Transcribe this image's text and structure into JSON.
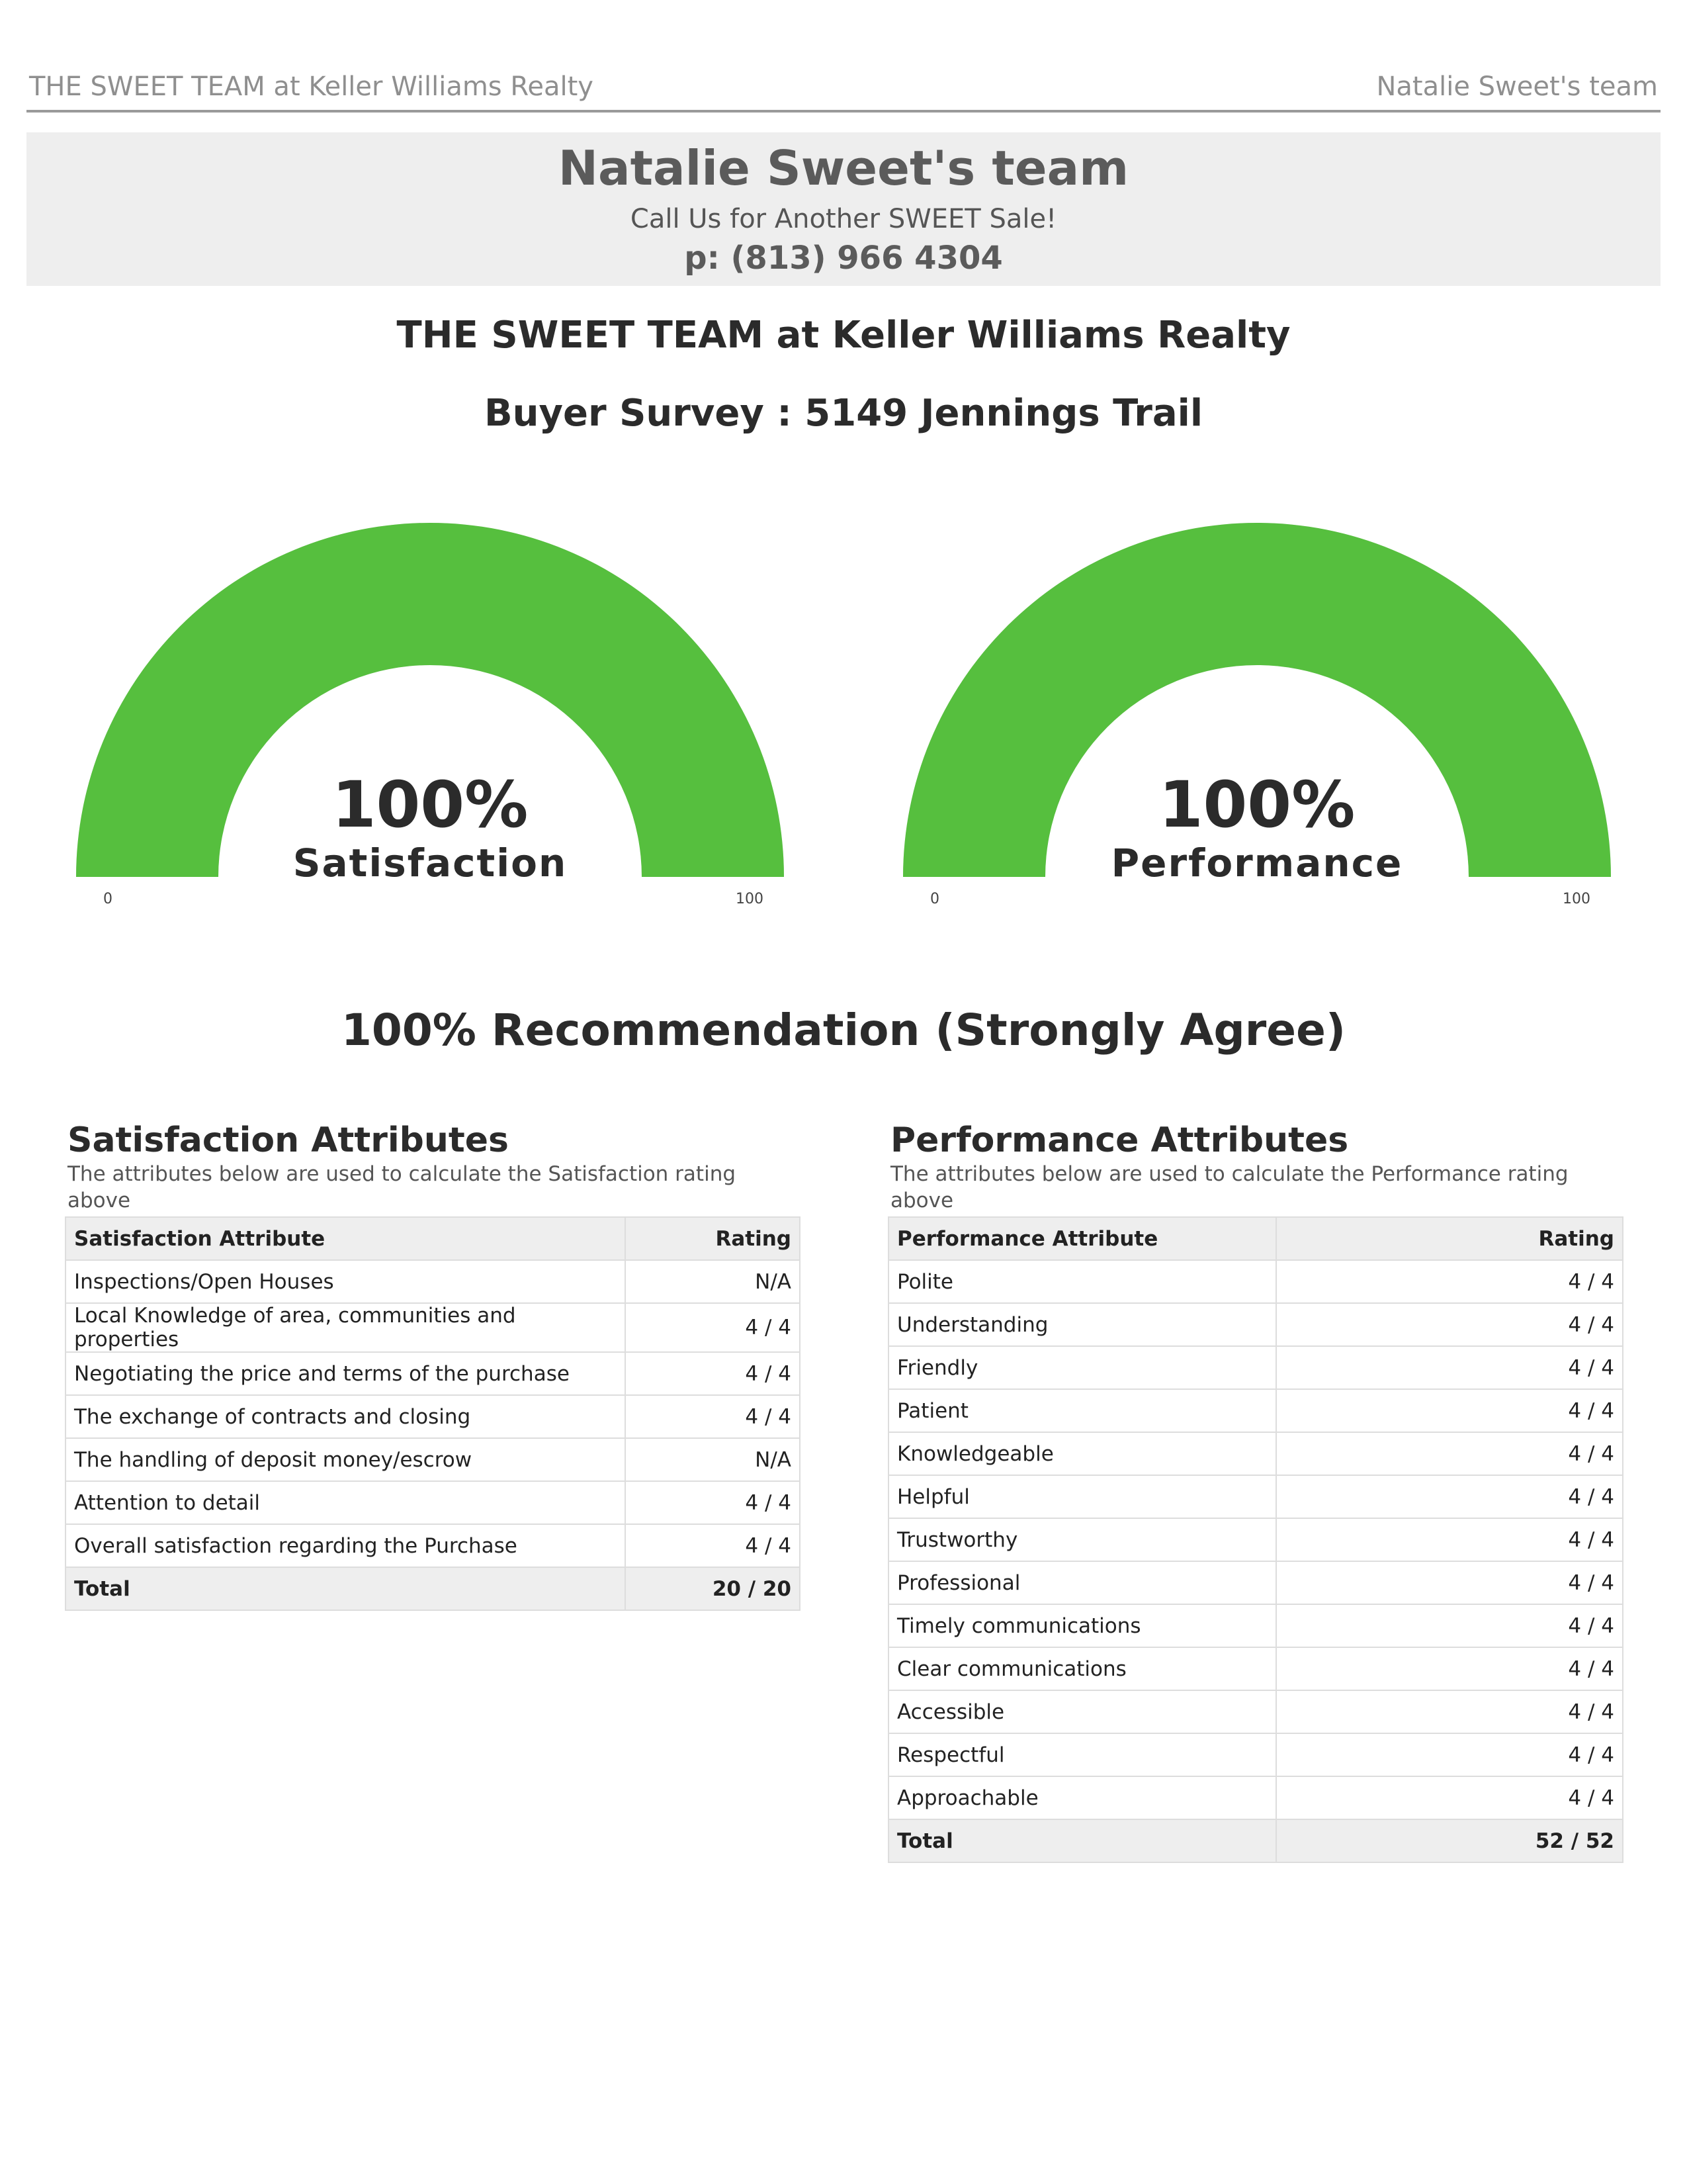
{
  "header": {
    "left": "THE SWEET TEAM at Keller Williams Realty",
    "right": "Natalie Sweet's team"
  },
  "banner": {
    "name": "Natalie Sweet's team",
    "tagline": "Call Us for Another SWEET Sale!",
    "phone": "p: (813) 966 4304"
  },
  "company_title": "THE SWEET TEAM at Keller Williams Realty",
  "survey_title": "Buyer Survey : 5149 Jennings Trail",
  "gauges": [
    {
      "value_text": "100%",
      "label": "Satisfaction",
      "value": 100,
      "min": "0",
      "max": "100",
      "color": "#56bf3e"
    },
    {
      "value_text": "100%",
      "label": "Performance",
      "value": 100,
      "min": "0",
      "max": "100",
      "color": "#56bf3e"
    }
  ],
  "recommendation": "100% Recommendation (Strongly Agree)",
  "satisfaction": {
    "title": "Satisfaction Attributes",
    "description": "The attributes below are used to calculate the Satisfaction rating above",
    "col_attribute": "Satisfaction Attribute",
    "col_rating": "Rating",
    "rows": [
      {
        "attribute": "Inspections/Open Houses",
        "rating": "N/A"
      },
      {
        "attribute": "Local Knowledge of area, communities and properties",
        "rating": "4 / 4"
      },
      {
        "attribute": "Negotiating the price and terms of the purchase",
        "rating": "4 / 4"
      },
      {
        "attribute": "The exchange of contracts and closing",
        "rating": "4 / 4"
      },
      {
        "attribute": "The handling of deposit money/escrow",
        "rating": "N/A"
      },
      {
        "attribute": "Attention to detail",
        "rating": "4 / 4"
      },
      {
        "attribute": "Overall satisfaction regarding the Purchase",
        "rating": "4 / 4"
      }
    ],
    "total_label": "Total",
    "total_value": "20 / 20"
  },
  "performance": {
    "title": "Performance Attributes",
    "description": "The attributes below are used to calculate the Performance rating above",
    "col_attribute": "Performance Attribute",
    "col_rating": "Rating",
    "rows": [
      {
        "attribute": "Polite",
        "rating": "4 / 4"
      },
      {
        "attribute": "Understanding",
        "rating": "4 / 4"
      },
      {
        "attribute": "Friendly",
        "rating": "4 / 4"
      },
      {
        "attribute": "Patient",
        "rating": "4 / 4"
      },
      {
        "attribute": "Knowledgeable",
        "rating": "4 / 4"
      },
      {
        "attribute": "Helpful",
        "rating": "4 / 4"
      },
      {
        "attribute": "Trustworthy",
        "rating": "4 / 4"
      },
      {
        "attribute": "Professional",
        "rating": "4 / 4"
      },
      {
        "attribute": "Timely communications",
        "rating": "4 / 4"
      },
      {
        "attribute": "Clear communications",
        "rating": "4 / 4"
      },
      {
        "attribute": "Accessible",
        "rating": "4 / 4"
      },
      {
        "attribute": "Respectful",
        "rating": "4 / 4"
      },
      {
        "attribute": "Approachable",
        "rating": "4 / 4"
      }
    ],
    "total_label": "Total",
    "total_value": "52 / 52"
  }
}
